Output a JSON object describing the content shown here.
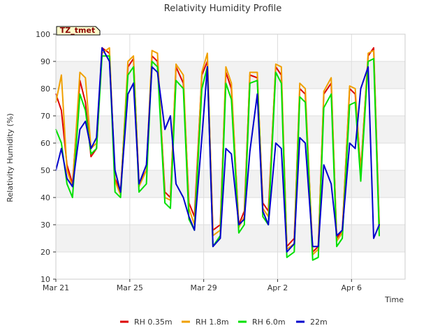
{
  "chart_data": {
    "type": "line",
    "title": "Relativity Humidity Profile",
    "xlabel": "Time",
    "ylabel": "Relativity Humidity (%)",
    "ylim": [
      10,
      100
    ],
    "xlim": [
      0,
      18.9
    ],
    "yticks": [
      10,
      20,
      30,
      40,
      50,
      60,
      70,
      80,
      90,
      100
    ],
    "xticks": [
      {
        "label": "Mar 21",
        "value": 0
      },
      {
        "label": "Mar 25",
        "value": 4
      },
      {
        "label": "Mar 29",
        "value": 8
      },
      {
        "label": "Apr 2",
        "value": 12
      },
      {
        "label": "Apr 6",
        "value": 16
      }
    ],
    "grid": true,
    "station_label": "TZ_tmet",
    "x_unit": "days since Mar 21",
    "legend_position": "bottom",
    "series": [
      {
        "name": "RH 0.35m",
        "color": "#dd0000",
        "x": [
          0.0,
          0.3,
          0.6,
          0.9,
          1.3,
          1.6,
          1.9,
          2.2,
          2.5,
          2.9,
          3.2,
          3.5,
          3.9,
          4.2,
          4.5,
          4.9,
          5.2,
          5.5,
          5.9,
          6.2,
          6.5,
          6.9,
          7.2,
          7.5,
          7.9,
          8.2,
          8.5,
          8.9,
          9.2,
          9.5,
          9.9,
          10.2,
          10.5,
          10.9,
          11.2,
          11.5,
          11.9,
          12.2,
          12.5,
          12.9,
          13.2,
          13.5,
          13.9,
          14.2,
          14.5,
          14.9,
          15.2,
          15.5,
          15.9,
          16.2,
          16.5,
          16.9,
          17.2,
          17.5
        ],
        "values": [
          78,
          72,
          52,
          45,
          83,
          75,
          55,
          58,
          95,
          93,
          47,
          42,
          88,
          91,
          45,
          50,
          92,
          90,
          42,
          40,
          88,
          82,
          38,
          33,
          85,
          90,
          28,
          30,
          86,
          80,
          30,
          35,
          85,
          84,
          38,
          35,
          88,
          85,
          22,
          25,
          80,
          78,
          20,
          22,
          78,
          82,
          25,
          28,
          80,
          78,
          50,
          92,
          95,
          30
        ]
      },
      {
        "name": "RH 1.8m",
        "color": "#f0a000",
        "x": [
          0.0,
          0.3,
          0.6,
          0.9,
          1.3,
          1.6,
          1.9,
          2.2,
          2.5,
          2.9,
          3.2,
          3.5,
          3.9,
          4.2,
          4.5,
          4.9,
          5.2,
          5.5,
          5.9,
          6.2,
          6.5,
          6.9,
          7.2,
          7.5,
          7.9,
          8.2,
          8.5,
          8.9,
          9.2,
          9.5,
          9.9,
          10.2,
          10.5,
          10.9,
          11.2,
          11.5,
          11.9,
          12.2,
          12.5,
          12.9,
          13.2,
          13.5,
          13.9,
          14.2,
          14.5,
          14.9,
          15.2,
          15.5,
          15.9,
          16.2,
          16.5,
          16.9,
          17.2,
          17.5
        ],
        "values": [
          75,
          85,
          50,
          44,
          86,
          84,
          58,
          60,
          93,
          95,
          46,
          41,
          90,
          92,
          44,
          50,
          94,
          93,
          40,
          39,
          89,
          85,
          36,
          30,
          86,
          93,
          26,
          28,
          88,
          82,
          29,
          33,
          86,
          86,
          36,
          33,
          89,
          88,
          21,
          23,
          82,
          80,
          19,
          21,
          79,
          84,
          24,
          27,
          81,
          80,
          49,
          93,
          94,
          29
        ]
      },
      {
        "name": "RH 6.0m",
        "color": "#00e000",
        "x": [
          0.0,
          0.3,
          0.6,
          0.9,
          1.3,
          1.6,
          1.9,
          2.2,
          2.5,
          2.9,
          3.2,
          3.5,
          3.9,
          4.2,
          4.5,
          4.9,
          5.2,
          5.5,
          5.9,
          6.2,
          6.5,
          6.9,
          7.2,
          7.5,
          7.9,
          8.2,
          8.5,
          8.9,
          9.2,
          9.5,
          9.9,
          10.2,
          10.5,
          10.9,
          11.2,
          11.5,
          11.9,
          12.2,
          12.5,
          12.9,
          13.2,
          13.5,
          13.9,
          14.2,
          14.5,
          14.9,
          15.2,
          15.5,
          15.9,
          16.2,
          16.5,
          16.9,
          17.2,
          17.5
        ],
        "values": [
          65,
          60,
          45,
          40,
          78,
          72,
          56,
          58,
          92,
          92,
          42,
          40,
          85,
          88,
          42,
          45,
          90,
          88,
          38,
          36,
          83,
          80,
          32,
          28,
          80,
          88,
          22,
          26,
          82,
          76,
          27,
          30,
          82,
          83,
          33,
          30,
          86,
          82,
          18,
          20,
          77,
          75,
          17,
          18,
          73,
          78,
          22,
          25,
          74,
          75,
          46,
          90,
          91,
          26
        ]
      },
      {
        "name": "22m",
        "color": "#0000cc",
        "x": [
          0.0,
          0.3,
          0.6,
          0.9,
          1.3,
          1.6,
          1.9,
          2.2,
          2.5,
          2.9,
          3.2,
          3.5,
          3.9,
          4.2,
          4.5,
          4.9,
          5.2,
          5.5,
          5.9,
          6.2,
          6.5,
          6.9,
          7.2,
          7.5,
          7.9,
          8.2,
          8.5,
          8.9,
          9.2,
          9.5,
          9.9,
          10.2,
          10.5,
          10.9,
          11.2,
          11.5,
          11.9,
          12.2,
          12.5,
          12.9,
          13.2,
          13.5,
          13.9,
          14.2,
          14.5,
          14.9,
          15.2,
          15.5,
          15.9,
          16.2,
          16.5,
          16.9,
          17.2,
          17.5
        ],
        "values": [
          50,
          58,
          47,
          44,
          65,
          68,
          58,
          62,
          95,
          90,
          50,
          42,
          78,
          82,
          45,
          52,
          88,
          86,
          65,
          70,
          45,
          40,
          33,
          28,
          62,
          88,
          22,
          25,
          58,
          56,
          30,
          32,
          57,
          78,
          35,
          30,
          60,
          58,
          20,
          23,
          62,
          60,
          22,
          22,
          52,
          45,
          26,
          28,
          60,
          58,
          80,
          88,
          25,
          30
        ]
      }
    ]
  }
}
